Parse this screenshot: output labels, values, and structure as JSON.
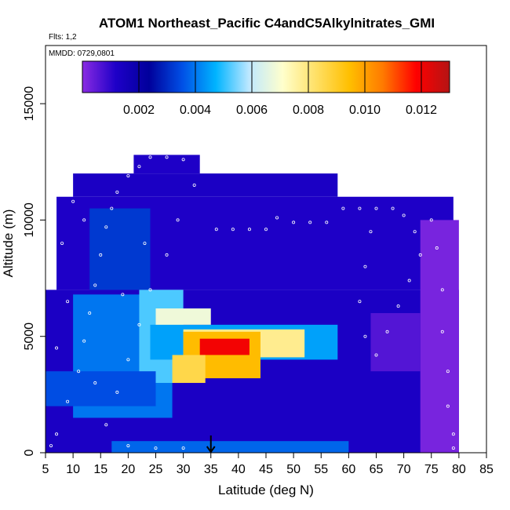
{
  "chart_data": {
    "type": "heatmap",
    "title": "ATOM1 Northeast_Pacific C4andC5Alkylnitrates_GMI",
    "flights_label": "Flts: 1,2",
    "date_label": "MMDD: 0729,0801",
    "xlabel": "Latitude (deg N)",
    "ylabel": "Altitude (m)",
    "xlim": [
      5,
      85
    ],
    "ylim": [
      0,
      17500
    ],
    "x_ticks": [
      "5",
      "10",
      "15",
      "20",
      "25",
      "30",
      "35",
      "40",
      "45",
      "50",
      "55",
      "60",
      "65",
      "70",
      "75",
      "80",
      "85"
    ],
    "y_ticks": [
      "0",
      "5000",
      "10000",
      "15000"
    ],
    "y_tick_values": [
      0,
      5000,
      10000,
      15000
    ],
    "x_tick_values": [
      5,
      10,
      15,
      20,
      25,
      30,
      35,
      40,
      45,
      50,
      55,
      60,
      65,
      70,
      75,
      80,
      85
    ],
    "colorbar": {
      "min": 0,
      "max": 0.013,
      "tick_labels": [
        "0.002",
        "0.004",
        "0.006",
        "0.008",
        "0.010",
        "0.012"
      ],
      "tick_values": [
        0.002,
        0.004,
        0.006,
        0.008,
        0.01,
        0.012
      ],
      "colors": [
        "#8a2be2",
        "#1e00c8",
        "#00009b",
        "#0050e6",
        "#00b4ff",
        "#bfe8ff",
        "#ffffcc",
        "#ffe066",
        "#ffbf00",
        "#ff7a00",
        "#ff0000",
        "#b41414"
      ]
    },
    "marker": {
      "latitude": 35,
      "altitude": 0
    },
    "grid": false,
    "regions": [
      {
        "lat": [
          5,
          80
        ],
        "alt": [
          0,
          7000
        ],
        "value": 0.0013
      },
      {
        "lat": [
          7,
          79
        ],
        "alt": [
          7000,
          11000
        ],
        "value": 0.0012
      },
      {
        "lat": [
          10,
          58
        ],
        "alt": [
          11000,
          12000
        ],
        "value": 0.0013
      },
      {
        "lat": [
          21,
          33
        ],
        "alt": [
          12000,
          12800
        ],
        "value": 0.0012
      },
      {
        "lat": [
          73,
          80
        ],
        "alt": [
          0,
          10000
        ],
        "value": 0.0002
      },
      {
        "lat": [
          64,
          73
        ],
        "alt": [
          3500,
          6000
        ],
        "value": 0.0006
      },
      {
        "lat": [
          10,
          28
        ],
        "alt": [
          1500,
          6800
        ],
        "value": 0.004
      },
      {
        "lat": [
          13,
          24
        ],
        "alt": [
          7000,
          10500
        ],
        "value": 0.0032
      },
      {
        "lat": [
          22,
          30
        ],
        "alt": [
          3000,
          7000
        ],
        "value": 0.0052
      },
      {
        "lat": [
          24,
          58
        ],
        "alt": [
          4000,
          5500
        ],
        "value": 0.0045
      },
      {
        "lat": [
          25,
          35
        ],
        "alt": [
          5500,
          6200
        ],
        "value": 0.0068
      },
      {
        "lat": [
          30,
          52
        ],
        "alt": [
          4100,
          5300
        ],
        "value": 0.0078
      },
      {
        "lat": [
          30,
          44
        ],
        "alt": [
          3200,
          5200
        ],
        "value": 0.0095
      },
      {
        "lat": [
          33,
          42
        ],
        "alt": [
          4200,
          4900
        ],
        "value": 0.012
      },
      {
        "lat": [
          28,
          34
        ],
        "alt": [
          3000,
          4200
        ],
        "value": 0.0086
      },
      {
        "lat": [
          17,
          60
        ],
        "alt": [
          0,
          500
        ],
        "value": 0.0038
      },
      {
        "lat": [
          5,
          25
        ],
        "alt": [
          2000,
          3500
        ],
        "value": 0.0035
      }
    ],
    "sample_points": [
      {
        "lat": 6,
        "alt": 300
      },
      {
        "lat": 7,
        "alt": 800
      },
      {
        "lat": 9,
        "alt": 2200
      },
      {
        "lat": 11,
        "alt": 3500
      },
      {
        "lat": 12,
        "alt": 4800
      },
      {
        "lat": 13,
        "alt": 6000
      },
      {
        "lat": 14,
        "alt": 7200
      },
      {
        "lat": 15,
        "alt": 8500
      },
      {
        "lat": 16,
        "alt": 9700
      },
      {
        "lat": 17,
        "alt": 10500
      },
      {
        "lat": 18,
        "alt": 11200
      },
      {
        "lat": 20,
        "alt": 11900
      },
      {
        "lat": 22,
        "alt": 12300
      },
      {
        "lat": 24,
        "alt": 12700
      },
      {
        "lat": 27,
        "alt": 12700
      },
      {
        "lat": 30,
        "alt": 12600
      },
      {
        "lat": 32,
        "alt": 11500
      },
      {
        "lat": 29,
        "alt": 10000
      },
      {
        "lat": 27,
        "alt": 8500
      },
      {
        "lat": 24,
        "alt": 7000
      },
      {
        "lat": 22,
        "alt": 5500
      },
      {
        "lat": 20,
        "alt": 4000
      },
      {
        "lat": 18,
        "alt": 2600
      },
      {
        "lat": 16,
        "alt": 1200
      },
      {
        "lat": 20,
        "alt": 300
      },
      {
        "lat": 25,
        "alt": 200
      },
      {
        "lat": 30,
        "alt": 200
      },
      {
        "lat": 36,
        "alt": 9600
      },
      {
        "lat": 39,
        "alt": 9600
      },
      {
        "lat": 42,
        "alt": 9600
      },
      {
        "lat": 45,
        "alt": 9600
      },
      {
        "lat": 47,
        "alt": 10100
      },
      {
        "lat": 50,
        "alt": 9900
      },
      {
        "lat": 53,
        "alt": 9900
      },
      {
        "lat": 56,
        "alt": 9900
      },
      {
        "lat": 59,
        "alt": 10500
      },
      {
        "lat": 62,
        "alt": 10500
      },
      {
        "lat": 65,
        "alt": 10500
      },
      {
        "lat": 68,
        "alt": 10500
      },
      {
        "lat": 70,
        "alt": 10200
      },
      {
        "lat": 72,
        "alt": 9500
      },
      {
        "lat": 73,
        "alt": 8500
      },
      {
        "lat": 71,
        "alt": 7400
      },
      {
        "lat": 69,
        "alt": 6300
      },
      {
        "lat": 67,
        "alt": 5200
      },
      {
        "lat": 65,
        "alt": 4200
      },
      {
        "lat": 63,
        "alt": 5000
      },
      {
        "lat": 62,
        "alt": 6500
      },
      {
        "lat": 63,
        "alt": 8000
      },
      {
        "lat": 64,
        "alt": 9500
      },
      {
        "lat": 75,
        "alt": 10000
      },
      {
        "lat": 76,
        "alt": 8800
      },
      {
        "lat": 77,
        "alt": 7000
      },
      {
        "lat": 77,
        "alt": 5200
      },
      {
        "lat": 78,
        "alt": 3500
      },
      {
        "lat": 78,
        "alt": 2000
      },
      {
        "lat": 79,
        "alt": 800
      },
      {
        "lat": 79,
        "alt": 200
      },
      {
        "lat": 8,
        "alt": 9000
      },
      {
        "lat": 10,
        "alt": 10800
      },
      {
        "lat": 12,
        "alt": 10000
      },
      {
        "lat": 9,
        "alt": 6500
      },
      {
        "lat": 7,
        "alt": 4500
      },
      {
        "lat": 14,
        "alt": 3000
      },
      {
        "lat": 19,
        "alt": 6800
      },
      {
        "lat": 23,
        "alt": 9000
      }
    ]
  }
}
